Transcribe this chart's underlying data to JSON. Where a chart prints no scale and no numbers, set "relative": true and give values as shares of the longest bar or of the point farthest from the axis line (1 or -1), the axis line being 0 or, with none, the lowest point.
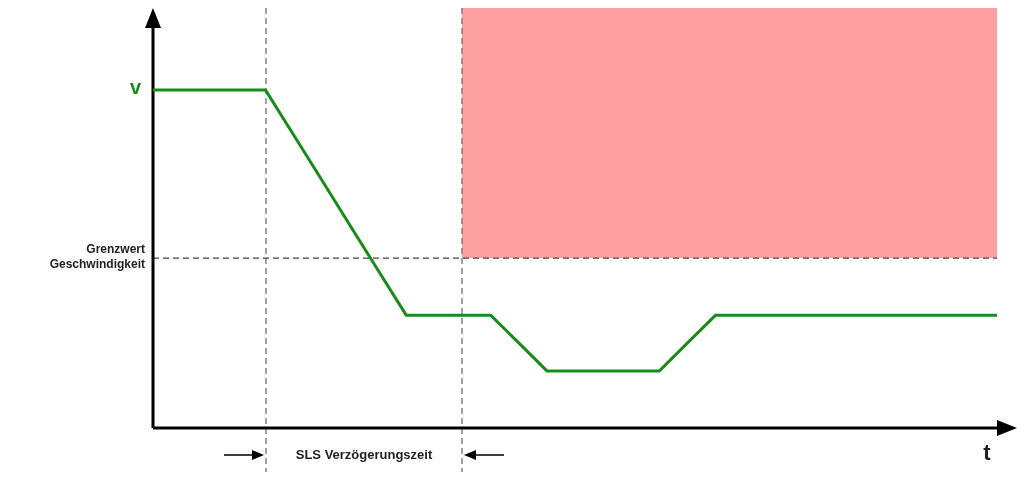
{
  "chart_data": {
    "type": "line",
    "relative": true,
    "xlabel": "t",
    "tick_labels": false,
    "marker": "none",
    "line_style": "solid",
    "categories": [
      null,
      null,
      null,
      null,
      null,
      null,
      null,
      null,
      null,
      null,
      null,
      null,
      null,
      null,
      null,
      null,
      null,
      null,
      null,
      null,
      null,
      null,
      null,
      null,
      null,
      null,
      null,
      null,
      null,
      null,
      null
    ],
    "series": [
      {
        "color": "#1a8a1a",
        "values": [
          1,
          1,
          1,
          1,
          1,
          0.867,
          0.734,
          0.6,
          0.467,
          0.334,
          0.334,
          0.334,
          0.334,
          0.252,
          0.169,
          0.169,
          0.169,
          0.169,
          0.169,
          0.252,
          0.334,
          0.334,
          0.334,
          0.334,
          0.334,
          0.334,
          0.334,
          0.334,
          0.334,
          0.334,
          0.334
        ]
      }
    ],
    "annotations": [
      "v",
      "SLS Verzögerungszeit"
    ],
    "ref_lines": [
      {
        "axis": "y",
        "value": 0.503,
        "label": "Grenzwert Geschwindigkeit",
        "color": "#444444",
        "line_style": "dashed"
      }
    ]
  }
}
